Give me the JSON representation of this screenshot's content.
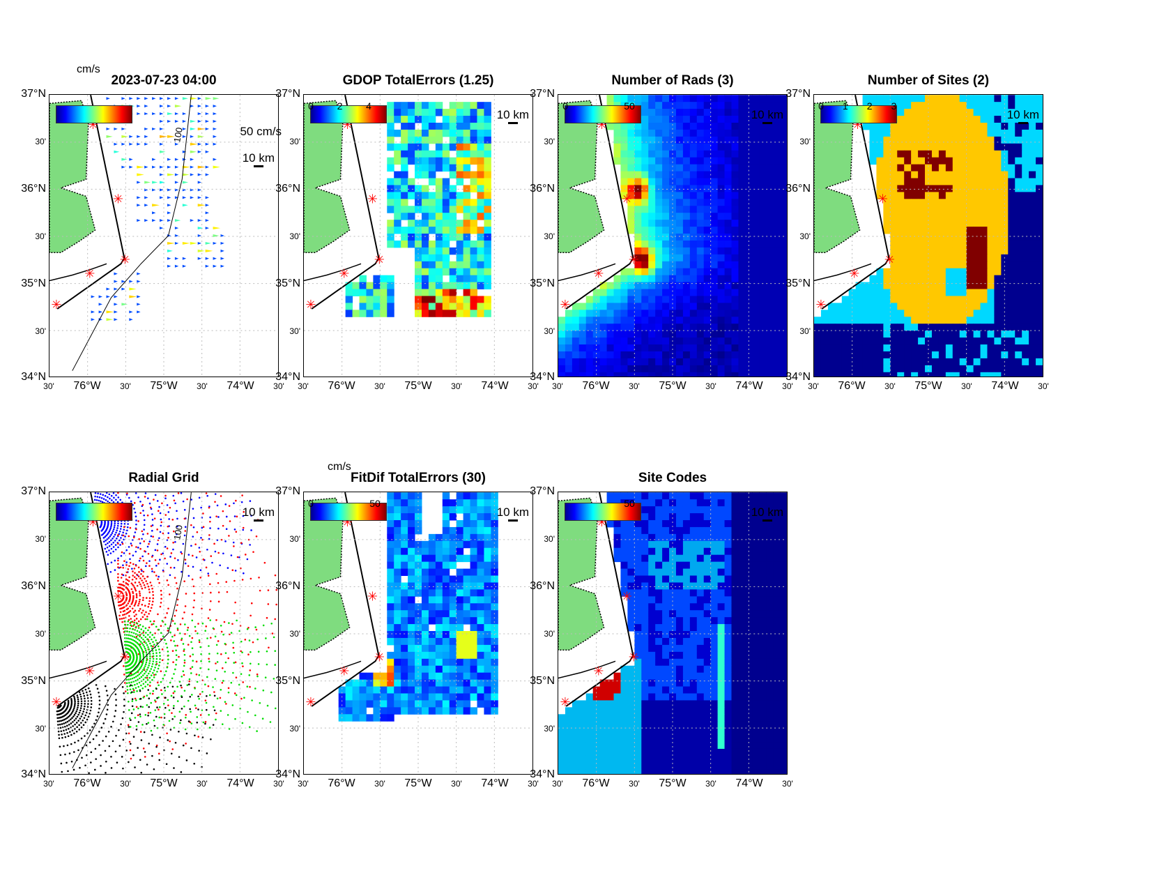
{
  "ylabels": [
    "37°N",
    "30'",
    "36°N",
    "30'",
    "35°N",
    "30'",
    "34°N"
  ],
  "xlabels": [
    "30'",
    "76°W",
    "30'",
    "75°W",
    "30'",
    "74°W",
    "30'"
  ],
  "scale_label": "10 km",
  "colors": {
    "land": "#7fdc7f",
    "site_marker": "#ff0000",
    "colormap": "jet"
  },
  "panels": [
    {
      "id": "vectors",
      "title": "2023-07-23 04:00",
      "unit": "cm/s",
      "cbar_ticks": [],
      "vector_scale": "50 cm/s",
      "isobath": "100"
    },
    {
      "id": "gdop",
      "title": "GDOP TotalErrors (1.25)",
      "cbar_ticks": [
        "0",
        "2",
        "4"
      ],
      "contour": "1.25"
    },
    {
      "id": "rads",
      "title": "Number of Rads (3)",
      "cbar_ticks": [
        "0",
        "50"
      ],
      "contour": "3"
    },
    {
      "id": "sites",
      "title": "Number of Sites (2)",
      "cbar_ticks": [
        "0",
        "1",
        "2",
        "3"
      ],
      "contour": "2"
    },
    {
      "id": "radial",
      "title": "Radial Grid",
      "cbar_ticks": [],
      "isobath": "100"
    },
    {
      "id": "fitdif",
      "title": "FitDif TotalErrors (30)",
      "unit": "cm/s",
      "cbar_ticks": [
        "0",
        "50"
      ],
      "contour": "30"
    },
    {
      "id": "sitecodes",
      "title": "Site Codes",
      "cbar_ticks": [
        "",
        "50"
      ]
    }
  ]
}
